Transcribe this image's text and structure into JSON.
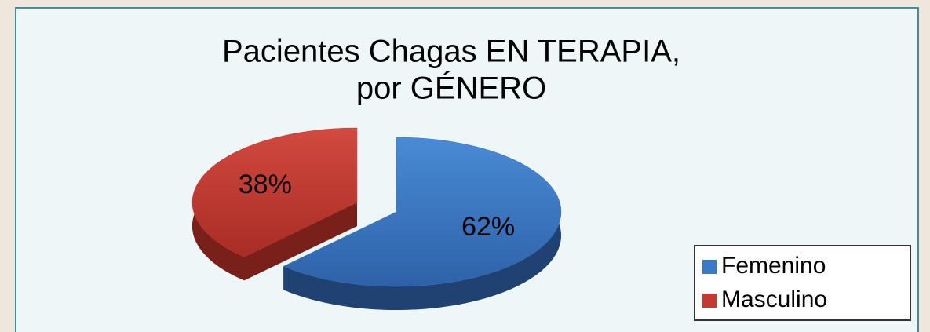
{
  "chart_data": {
    "type": "pie",
    "title": [
      "Pacientes Chagas EN TERAPIA,",
      "por GÉNERO"
    ],
    "categories": [
      "Femenino",
      "Masculino"
    ],
    "values": [
      62,
      38
    ],
    "value_labels": [
      "62%",
      "38%"
    ],
    "colors": [
      "#3b78c6",
      "#c23a31"
    ],
    "legend": "bottom right"
  }
}
